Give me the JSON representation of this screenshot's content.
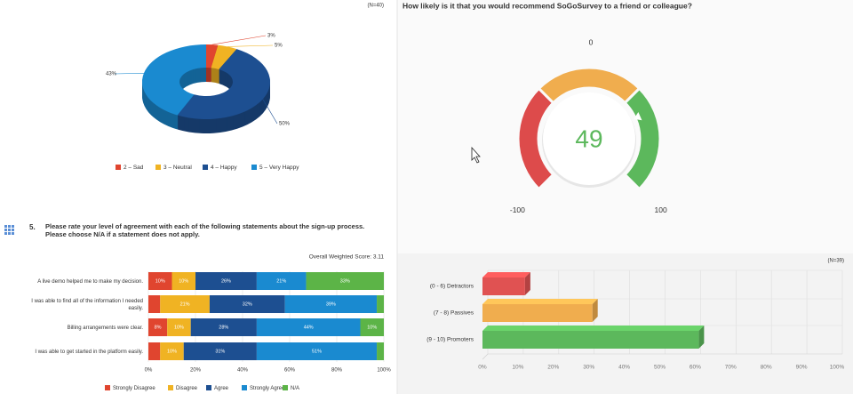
{
  "chart_data": [
    {
      "type": "pie",
      "annotation": "(N=40)",
      "categories": [
        "2 – Sad",
        "3 – Neutral",
        "4 – Happy",
        "5 – Very Happy"
      ],
      "values": [
        3,
        5,
        50,
        43
      ],
      "value_labels": [
        "3%",
        "5%",
        "50%",
        "43%"
      ],
      "colors": [
        "#e0452f",
        "#f0b323",
        "#1d4f91",
        "#1a8ad0"
      ]
    },
    {
      "type": "stacked-bar-horizontal",
      "question_number": "5.",
      "title": "Please rate your level of agreement with each of the following statements about the sign-up process. Please choose N/A if a statement does not apply.",
      "subtitle": "Overall Weighted Score: 3.11",
      "categories": [
        "A live demo helped me to make my decision.",
        "I was able to find all of the information I needed easily.",
        "Billing arrangements were clear.",
        "I was able to get started in the platform easily."
      ],
      "series": [
        {
          "name": "Strongly Disagree",
          "color": "#e0452f",
          "values": [
            10,
            5,
            8,
            5
          ],
          "value_labels": [
            "10%",
            null,
            "8%",
            null
          ]
        },
        {
          "name": "Disagree",
          "color": "#f0b323",
          "values": [
            10,
            21,
            10,
            10
          ],
          "value_labels": [
            "10%",
            "21%",
            "10%",
            "10%"
          ]
        },
        {
          "name": "Agree",
          "color": "#1d4f91",
          "values": [
            26,
            32,
            28,
            31
          ],
          "value_labels": [
            "26%",
            "32%",
            "28%",
            "31%"
          ]
        },
        {
          "name": "Strongly Agree",
          "color": "#1a8ad0",
          "values": [
            21,
            39,
            44,
            51
          ],
          "value_labels": [
            "21%",
            "39%",
            "44%",
            "51%"
          ]
        },
        {
          "name": "N/A",
          "color": "#5cb447",
          "values": [
            33,
            3,
            10,
            3
          ],
          "value_labels": [
            "33%",
            null,
            "10%",
            null
          ]
        }
      ],
      "xlim": [
        0,
        100
      ],
      "xticks": [
        {
          "value": 0,
          "label": "0%"
        },
        {
          "value": 20,
          "label": "20%"
        },
        {
          "value": 40,
          "label": "40%"
        },
        {
          "value": 60,
          "label": "60%"
        },
        {
          "value": 80,
          "label": "80%"
        },
        {
          "value": 100,
          "label": "100%"
        }
      ],
      "grid": true
    },
    {
      "type": "gauge",
      "title": "How likely is it that you would recommend SoGoSurvey to a friend or colleague?",
      "value": 49,
      "ylim": [
        -100,
        100
      ],
      "yticks": [
        -100,
        0,
        100
      ],
      "band_colors": [
        "#dd4b4b",
        "#f0ad4e",
        "#5cb85c"
      ],
      "value_color": "#5cb85c"
    },
    {
      "type": "bar-horizontal-3d",
      "annotation": "(N=39)",
      "categories": [
        "(0 - 6) Detractors",
        "(7 - 8) Passives",
        "(9 - 10) Promoters"
      ],
      "values": [
        12,
        31,
        61
      ],
      "colors": [
        "#e05252",
        "#f0ad4e",
        "#5cb85c"
      ],
      "xlim": [
        0,
        100
      ],
      "xticks": [
        {
          "value": 0,
          "label": "0%"
        },
        {
          "value": 10,
          "label": "10%"
        },
        {
          "value": 20,
          "label": "20%"
        },
        {
          "value": 30,
          "label": "30%"
        },
        {
          "value": 40,
          "label": "40%"
        },
        {
          "value": 50,
          "label": "50%"
        },
        {
          "value": 60,
          "label": "60%"
        },
        {
          "value": 70,
          "label": "70%"
        },
        {
          "value": 80,
          "label": "80%"
        },
        {
          "value": 90,
          "label": "90%"
        },
        {
          "value": 100,
          "label": "100%"
        }
      ],
      "grid": true
    }
  ]
}
